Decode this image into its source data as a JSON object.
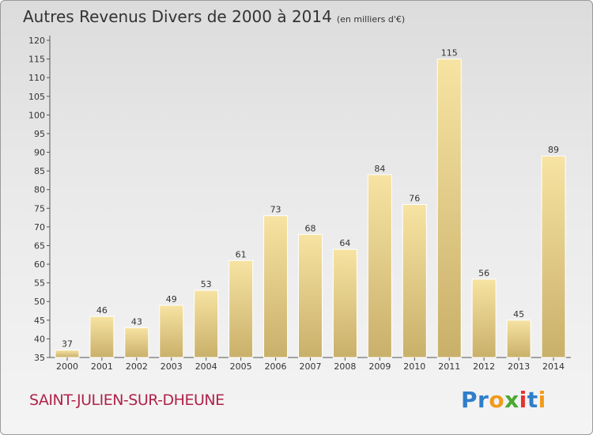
{
  "header": {
    "title": "Autres Revenus Divers de 2000 à 2014",
    "unit": "(en milliers d'€)"
  },
  "footer": {
    "city": "SAINT-JULIEN-SUR-DHEUNE",
    "logo": "Proxiti"
  },
  "colors": {
    "bar_light": "#f7e3a2",
    "bar_dark": "#c9b06a",
    "city": "#b0224b"
  },
  "chart_data": {
    "type": "bar",
    "title": "Autres Revenus Divers de 2000 à 2014",
    "subtitle": "(en milliers d'€)",
    "xlabel": "",
    "ylabel": "",
    "categories": [
      "2000",
      "2001",
      "2002",
      "2003",
      "2004",
      "2005",
      "2006",
      "2007",
      "2008",
      "2009",
      "2010",
      "2011",
      "2012",
      "2013",
      "2014"
    ],
    "values": [
      37,
      46,
      43,
      49,
      53,
      61,
      73,
      68,
      64,
      84,
      76,
      115,
      56,
      45,
      89
    ],
    "ylim": [
      35,
      120
    ],
    "yticks": [
      35,
      40,
      45,
      50,
      55,
      60,
      65,
      70,
      75,
      80,
      85,
      90,
      95,
      100,
      105,
      110,
      115,
      120
    ],
    "grid": false,
    "legend": "none"
  }
}
